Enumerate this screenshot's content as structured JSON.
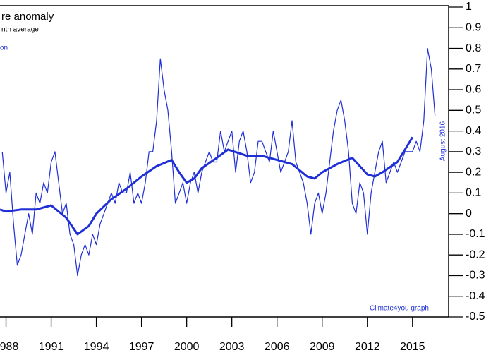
{
  "chart_data": {
    "type": "line",
    "title": "re anomaly",
    "subtitle": "nth average",
    "legend_text": "on",
    "annotations": [
      "August 2016",
      "Climate4you graph"
    ],
    "xlim": [
      1987.6,
      2017.4
    ],
    "xticks": [
      1988,
      1991,
      1994,
      1997,
      2000,
      2003,
      2006,
      2009,
      2012,
      2015
    ],
    "ylim": [
      -0.5,
      1
    ],
    "yticks": [
      1,
      0.9,
      0.8,
      0.7,
      0.6,
      0.5,
      0.4,
      0.3,
      0.2,
      0.1,
      0,
      -0.1,
      -0.2,
      -0.3,
      -0.4,
      -0.5
    ],
    "series": [
      {
        "color": "#1f2fd6",
        "width": 1.2,
        "x": [
          1987.75,
          1988,
          1988.25,
          1988.5,
          1988.75,
          1989,
          1989.25,
          1989.5,
          1989.75,
          1990,
          1990.25,
          1990.5,
          1990.75,
          1991,
          1991.25,
          1991.5,
          1991.75,
          1992,
          1992.25,
          1992.5,
          1992.75,
          1993,
          1993.25,
          1993.5,
          1993.75,
          1994,
          1994.25,
          1994.5,
          1994.75,
          1995,
          1995.25,
          1995.5,
          1995.75,
          1996,
          1996.25,
          1996.5,
          1996.75,
          1997,
          1997.25,
          1997.5,
          1997.75,
          1998,
          1998.25,
          1998.5,
          1998.75,
          1999,
          1999.25,
          1999.5,
          1999.75,
          2000,
          2000.25,
          2000.5,
          2000.75,
          2001,
          2001.25,
          2001.5,
          2001.75,
          2002,
          2002.25,
          2002.5,
          2002.75,
          2003,
          2003.25,
          2003.5,
          2003.75,
          2004,
          2004.25,
          2004.5,
          2004.75,
          2005,
          2005.25,
          2005.5,
          2005.75,
          2006,
          2006.25,
          2006.5,
          2006.75,
          2007,
          2007.25,
          2007.5,
          2007.75,
          2008,
          2008.25,
          2008.5,
          2008.75,
          2009,
          2009.25,
          2009.5,
          2009.75,
          2010,
          2010.25,
          2010.5,
          2010.75,
          2011,
          2011.25,
          2011.5,
          2011.75,
          2012,
          2012.25,
          2012.5,
          2012.75,
          2013,
          2013.25,
          2013.5,
          2013.75,
          2014,
          2014.25,
          2014.5,
          2014.75,
          2015,
          2015.25,
          2015.5,
          2015.75,
          2016,
          2016.25,
          2016.5
        ],
        "values": [
          0.3,
          0.1,
          0.2,
          -0.05,
          -0.25,
          -0.2,
          -0.1,
          0.0,
          -0.1,
          0.1,
          0.05,
          0.15,
          0.1,
          0.25,
          0.3,
          0.15,
          0.0,
          0.05,
          -0.1,
          -0.15,
          -0.3,
          -0.2,
          -0.15,
          -0.2,
          -0.1,
          -0.15,
          -0.05,
          0.0,
          0.05,
          0.1,
          0.05,
          0.15,
          0.1,
          0.1,
          0.2,
          0.05,
          0.1,
          0.05,
          0.15,
          0.3,
          0.3,
          0.45,
          0.75,
          0.6,
          0.5,
          0.3,
          0.05,
          0.1,
          0.15,
          0.05,
          0.15,
          0.2,
          0.1,
          0.2,
          0.25,
          0.3,
          0.25,
          0.25,
          0.4,
          0.3,
          0.35,
          0.4,
          0.2,
          0.35,
          0.4,
          0.3,
          0.15,
          0.2,
          0.35,
          0.35,
          0.3,
          0.25,
          0.4,
          0.3,
          0.2,
          0.25,
          0.3,
          0.45,
          0.25,
          0.2,
          0.15,
          0.05,
          -0.1,
          0.05,
          0.1,
          0.0,
          0.1,
          0.25,
          0.4,
          0.5,
          0.55,
          0.45,
          0.3,
          0.05,
          0.0,
          0.15,
          0.1,
          -0.1,
          0.1,
          0.2,
          0.3,
          0.35,
          0.15,
          0.2,
          0.25,
          0.2,
          0.25,
          0.3,
          0.3,
          0.3,
          0.35,
          0.3,
          0.45,
          0.8,
          0.7,
          0.47
        ]
      },
      {
        "color": "#1f2fd6",
        "width": 3,
        "x": [
          1987.6,
          1988,
          1989,
          1990,
          1991,
          1992,
          1992.75,
          1993.5,
          1994,
          1995,
          1996,
          1997,
          1998,
          1999,
          1999.5,
          2000,
          2000.5,
          2001,
          2002,
          2002.75,
          2004,
          2005,
          2006,
          2007,
          2008,
          2008.5,
          2009,
          2010,
          2011,
          2011.5,
          2012,
          2012.5,
          2013,
          2014,
          2015
        ],
        "values": [
          0.02,
          0.01,
          0.02,
          0.02,
          0.04,
          -0.02,
          -0.1,
          -0.06,
          0.0,
          0.07,
          0.12,
          0.18,
          0.23,
          0.26,
          0.2,
          0.15,
          0.17,
          0.22,
          0.27,
          0.31,
          0.28,
          0.28,
          0.26,
          0.24,
          0.18,
          0.17,
          0.2,
          0.24,
          0.27,
          0.23,
          0.19,
          0.18,
          0.2,
          0.25,
          0.37
        ]
      }
    ]
  }
}
